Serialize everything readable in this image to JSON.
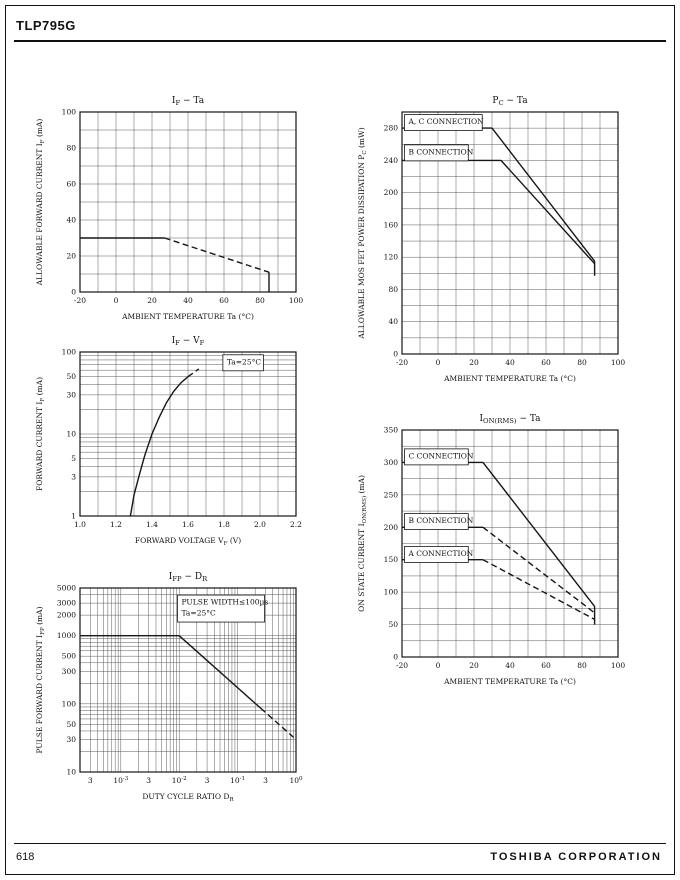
{
  "page": {
    "header_title": "TLP795G",
    "footer_page_number": "618",
    "footer_company": "TOSHIBA CORPORATION"
  },
  "colors": {
    "ink": "#161616",
    "grid": "#5a5a5a",
    "paper": "#ffffff"
  },
  "chart_data": [
    {
      "name": "if-ta",
      "type": "line",
      "title": "I~F~ − Ta",
      "x": {
        "scale": "linear",
        "min": -20,
        "max": 100,
        "minor_step": 10,
        "ticks": [
          -20,
          0,
          20,
          40,
          60,
          80,
          100
        ],
        "label": "AMBIENT TEMPERATURE  Ta  (°C)"
      },
      "y": {
        "scale": "linear",
        "min": 0,
        "max": 100,
        "minor_step": 10,
        "ticks": [
          0,
          20,
          40,
          60,
          80,
          100
        ],
        "label": "ALLOWABLE FORWARD CURRENT  I~F~  (mA)"
      },
      "series": [
        {
          "name": "rated-forward-current-flat",
          "dash": false,
          "points": [
            [
              -20,
              30
            ],
            [
              27,
              30
            ]
          ]
        },
        {
          "name": "rated-forward-current-derating",
          "dash": true,
          "points": [
            [
              27,
              30
            ],
            [
              85,
              11
            ]
          ]
        },
        {
          "name": "rated-forward-current-cutoff",
          "dash": false,
          "points": [
            [
              85,
              11
            ],
            [
              85,
              0
            ]
          ]
        }
      ],
      "annotations": []
    },
    {
      "name": "pc-ta",
      "type": "line",
      "title": "P~C~ − Ta",
      "x": {
        "scale": "linear",
        "min": -20,
        "max": 100,
        "minor_step": 10,
        "ticks": [
          -20,
          0,
          20,
          40,
          60,
          80,
          100
        ],
        "label": "AMBIENT TEMPERATURE  Ta  (°C)"
      },
      "y": {
        "scale": "linear",
        "min": 0,
        "max": 300,
        "minor_step": 20,
        "ticks": [
          0,
          40,
          80,
          120,
          160,
          200,
          240,
          280
        ],
        "label": "ALLOWABLE MOS FET POWER DISSIPATION  P~C~  (mW)"
      },
      "series": [
        {
          "name": "a-c-connection-flat",
          "dash": false,
          "points": [
            [
              -20,
              280
            ],
            [
              30,
              280
            ]
          ]
        },
        {
          "name": "a-c-connection-derating",
          "dash": false,
          "points": [
            [
              30,
              280
            ],
            [
              87,
              115
            ]
          ]
        },
        {
          "name": "b-connection-flat",
          "dash": false,
          "points": [
            [
              -20,
              240
            ],
            [
              35,
              240
            ]
          ]
        },
        {
          "name": "b-connection-derating",
          "dash": false,
          "points": [
            [
              35,
              240
            ],
            [
              87,
              112
            ]
          ]
        },
        {
          "name": "end-drop",
          "dash": false,
          "points": [
            [
              87,
              115
            ],
            [
              87,
              97
            ]
          ]
        }
      ],
      "annotations": [
        {
          "fx": 0.03,
          "fy": 0.05,
          "box": true,
          "lines": [
            "A, C CONNECTION"
          ]
        },
        {
          "fx": 0.03,
          "fy": 0.175,
          "box": true,
          "lines": [
            "B CONNECTION"
          ]
        }
      ]
    },
    {
      "name": "if-vf",
      "type": "line",
      "title": "I~F~ − V~F~",
      "x": {
        "scale": "linear",
        "min": 1.0,
        "max": 2.2,
        "minor_step": 0.1,
        "ticks": [
          {
            "v": 1.0,
            "label": "1.0"
          },
          {
            "v": 1.2,
            "label": "1.2"
          },
          {
            "v": 1.4,
            "label": "1.4"
          },
          {
            "v": 1.6,
            "label": "1.6"
          },
          {
            "v": 1.8,
            "label": "1.8"
          },
          {
            "v": 2.0,
            "label": "2.0"
          },
          {
            "v": 2.2,
            "label": "2.2"
          }
        ],
        "label": "FORWARD VOLTAGE  V~F~  (V)"
      },
      "y": {
        "scale": "log",
        "min": 1,
        "max": 100,
        "ticks": [
          1,
          3,
          5,
          10,
          30,
          50,
          100
        ],
        "label": "FORWARD CURRENT  I~F~  (mA)"
      },
      "series": [
        {
          "name": "forward-characteristic",
          "dash": false,
          "points": [
            [
              1.28,
              1
            ],
            [
              1.3,
              1.8
            ],
            [
              1.33,
              3.2
            ],
            [
              1.36,
              5.5
            ],
            [
              1.4,
              10
            ],
            [
              1.44,
              16
            ],
            [
              1.48,
              24
            ],
            [
              1.52,
              33
            ],
            [
              1.56,
              42
            ],
            [
              1.6,
              50
            ]
          ]
        },
        {
          "name": "forward-characteristic-extrapolated",
          "dash": true,
          "points": [
            [
              1.6,
              50
            ],
            [
              1.66,
              62
            ]
          ]
        }
      ],
      "annotations": [
        {
          "fx": 0.68,
          "fy": 0.075,
          "box": true,
          "lines": [
            "Ta=25°C"
          ]
        }
      ]
    },
    {
      "name": "ion-rms-ta",
      "type": "line",
      "title": "I~ON(RMS)~ − Ta",
      "x": {
        "scale": "linear",
        "min": -20,
        "max": 100,
        "minor_step": 10,
        "ticks": [
          -20,
          0,
          20,
          40,
          60,
          80,
          100
        ],
        "label": "AMBIENT TEMPERATURE  Ta  (°C)"
      },
      "y": {
        "scale": "linear",
        "min": 0,
        "max": 350,
        "minor_step": 25,
        "ticks": [
          0,
          50,
          100,
          150,
          200,
          250,
          300,
          350
        ],
        "label": "ON STATE CURRENT  I~ON(RMS)~  (mA)"
      },
      "series": [
        {
          "name": "c-connection-flat",
          "dash": false,
          "points": [
            [
              -20,
              300
            ],
            [
              25,
              300
            ]
          ]
        },
        {
          "name": "c-connection-derating",
          "dash": false,
          "points": [
            [
              25,
              300
            ],
            [
              87,
              78
            ]
          ]
        },
        {
          "name": "b-connection-flat",
          "dash": false,
          "points": [
            [
              -20,
              200
            ],
            [
              25,
              200
            ]
          ]
        },
        {
          "name": "b-connection-derating",
          "dash": true,
          "points": [
            [
              25,
              200
            ],
            [
              87,
              68
            ]
          ]
        },
        {
          "name": "a-connection-flat",
          "dash": false,
          "points": [
            [
              -20,
              150
            ],
            [
              25,
              150
            ]
          ]
        },
        {
          "name": "a-connection-derating",
          "dash": true,
          "points": [
            [
              25,
              150
            ],
            [
              87,
              58
            ]
          ]
        },
        {
          "name": "end-drop",
          "dash": false,
          "points": [
            [
              87,
              78
            ],
            [
              87,
              50
            ]
          ]
        }
      ],
      "annotations": [
        {
          "fx": 0.03,
          "fy": 0.125,
          "box": true,
          "lines": [
            "C CONNECTION"
          ]
        },
        {
          "fx": 0.03,
          "fy": 0.41,
          "box": true,
          "lines": [
            "B CONNECTION"
          ]
        },
        {
          "fx": 0.03,
          "fy": 0.555,
          "box": true,
          "lines": [
            "A CONNECTION"
          ]
        }
      ]
    },
    {
      "name": "ifp-dr",
      "type": "line",
      "title": "I~FP~ − D~R~",
      "x": {
        "scale": "log",
        "min": 0.0002,
        "max": 1,
        "ticks": [
          {
            "v": 0.0003,
            "label": "3"
          },
          {
            "v": 0.001,
            "label": "10^-3^"
          },
          {
            "v": 0.003,
            "label": "3"
          },
          {
            "v": 0.01,
            "label": "10^-2^"
          },
          {
            "v": 0.03,
            "label": "3"
          },
          {
            "v": 0.1,
            "label": "10^-1^"
          },
          {
            "v": 0.3,
            "label": "3"
          },
          {
            "v": 1,
            "label": "10^0^"
          }
        ],
        "label": "DUTY CYCLE RATIO  D~R~"
      },
      "y": {
        "scale": "log",
        "min": 10,
        "max": 5000,
        "ticks": [
          10,
          30,
          50,
          100,
          300,
          500,
          1000,
          2000,
          3000,
          5000
        ],
        "label": "PULSE FORWARD CURRENT I~FP~  (mA)"
      },
      "series": [
        {
          "name": "pulse-current-flat",
          "dash": false,
          "points": [
            [
              0.0002,
              1000
            ],
            [
              0.01,
              1000
            ]
          ]
        },
        {
          "name": "pulse-current-derating",
          "dash": false,
          "points": [
            [
              0.01,
              1000
            ],
            [
              0.25,
              86
            ]
          ]
        },
        {
          "name": "pulse-current-derating-tail",
          "dash": true,
          "points": [
            [
              0.25,
              86
            ],
            [
              1,
              30
            ]
          ]
        }
      ],
      "annotations": [
        {
          "fx": 0.47,
          "fy": 0.09,
          "box": true,
          "lines": [
            "PULSE WIDTH≤100µs",
            "Ta=25°C"
          ]
        }
      ]
    }
  ]
}
